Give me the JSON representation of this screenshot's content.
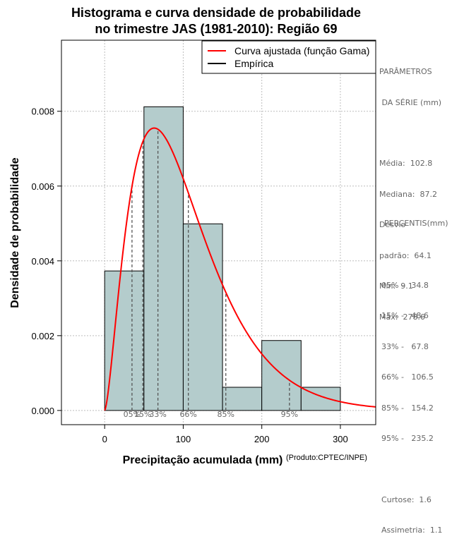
{
  "chart_data": {
    "type": "bar",
    "title_line1": "Histograma e curva densidade de probabilidade",
    "title_line2": "no trimestre JAS (1981-2010): Região 69",
    "xlabel": "Precipitação acumulada (mm)",
    "ylabel": "Densidade de probabilidade",
    "credit": "(Produto:CPTEC/INPE)",
    "xlim": [
      -55,
      345
    ],
    "ylim": [
      -0.00038,
      0.0099
    ],
    "x_ticks": [
      0,
      100,
      200,
      300
    ],
    "y_ticks": [
      0.0,
      0.002,
      0.004,
      0.006,
      0.008
    ],
    "y_tick_labels": [
      "0.000",
      "0.002",
      "0.004",
      "0.006",
      "0.008"
    ],
    "bins": [
      {
        "start": 0,
        "end": 50,
        "density": 0.00373
      },
      {
        "start": 50,
        "end": 100,
        "density": 0.00812
      },
      {
        "start": 100,
        "end": 150,
        "density": 0.00499
      },
      {
        "start": 150,
        "end": 200,
        "density": 0.00062
      },
      {
        "start": 200,
        "end": 250,
        "density": 0.00187
      },
      {
        "start": 250,
        "end": 300,
        "density": 0.00062
      }
    ],
    "gamma_fit": {
      "shape": 2.58,
      "scale": 39.9
    },
    "percentile_lines": [
      {
        "label": "05%",
        "x": 34.8
      },
      {
        "label": "15%",
        "x": 48.6
      },
      {
        "label": "33%",
        "x": 67.8
      },
      {
        "label": "66%",
        "x": 106.5
      },
      {
        "label": "85%",
        "x": 154.2
      },
      {
        "label": "95%",
        "x": 235.2
      }
    ],
    "legend": [
      {
        "label": "Curva ajustada (função Gama)",
        "color": "#ff0000"
      },
      {
        "label": "Empírica",
        "color": "#000000"
      }
    ],
    "colors": {
      "bar_fill": "#b4cccc",
      "curve": "#ff0000",
      "grid": "#bdbdbd"
    }
  },
  "stats": {
    "header1": "PARÂMETROS",
    "header2": " DA SÉRIE (mm)",
    "media": "Média:  102.8",
    "mediana": "Mediana:  87.2",
    "desvio1": "Desvio",
    "desvio2": "padrão:  64.1",
    "min": "Mín:  9.1",
    "max": "Máx:  278.6",
    "percentis_header": "PERCENTIS(mm)",
    "p05": "05% -   34.8",
    "p15": "15% -   48.6",
    "p33": "33% -   67.8",
    "p66": "66% -   106.5",
    "p85": "85% -   154.2",
    "p95": "95% -   235.2",
    "curtose": "Curtose:  1.6",
    "assimetria": "Assimetria:  1.1"
  }
}
